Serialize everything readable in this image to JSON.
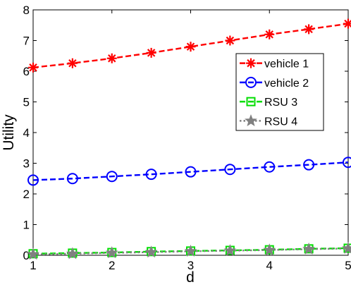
{
  "chart_data": {
    "type": "line",
    "xlabel": "d",
    "ylabel": "Utility",
    "xlim": [
      1,
      5
    ],
    "ylim": [
      0,
      8
    ],
    "xticks": [
      "1",
      "2",
      "3",
      "4",
      "5"
    ],
    "yticks": [
      "0",
      "1",
      "2",
      "3",
      "4",
      "5",
      "6",
      "7",
      "8"
    ],
    "x": [
      1,
      1.5,
      2,
      2.5,
      3,
      3.5,
      4,
      4.5,
      5
    ],
    "grid": false,
    "legend_position": "right",
    "series": [
      {
        "name": "vehicle 1",
        "color": "#ff0000",
        "marker": "asterisk",
        "line_style": "dashed",
        "values": [
          6.12,
          6.26,
          6.42,
          6.6,
          6.8,
          7.0,
          7.2,
          7.37,
          7.55
        ]
      },
      {
        "name": "vehicle 2",
        "color": "#0000ff",
        "marker": "circle",
        "line_style": "dashed",
        "values": [
          2.45,
          2.5,
          2.57,
          2.64,
          2.72,
          2.8,
          2.88,
          2.95,
          3.03
        ]
      },
      {
        "name": "RSU 3",
        "color": "#00dd00",
        "marker": "square",
        "line_style": "dashed",
        "values": [
          0.05,
          0.07,
          0.09,
          0.12,
          0.14,
          0.16,
          0.18,
          0.21,
          0.23
        ]
      },
      {
        "name": "RSU 4",
        "color": "#808080",
        "marker": "star",
        "line_style": "dotted",
        "values": [
          0.03,
          0.05,
          0.08,
          0.1,
          0.13,
          0.15,
          0.17,
          0.2,
          0.22
        ]
      }
    ]
  }
}
